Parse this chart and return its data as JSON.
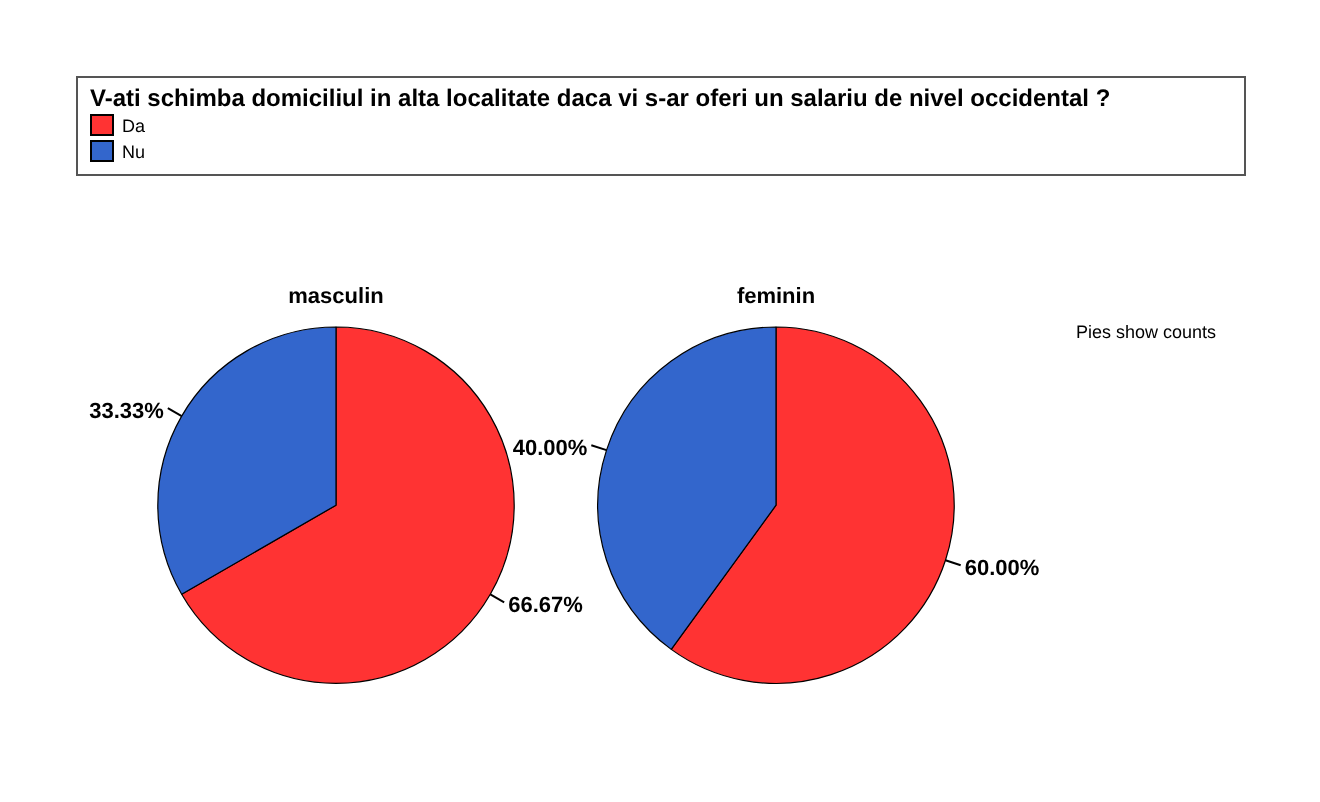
{
  "chart_data": [
    {
      "type": "pie",
      "title": "masculin",
      "legend_title": "V-ati schimba domiciliul in alta localitate daca vi s-ar oferi un salariu de nivel occidental ?",
      "legend": "top",
      "categories": [
        "Da",
        "Nu"
      ],
      "values": [
        66.67,
        33.33
      ],
      "colors": [
        "#ff3333",
        "#3366cc"
      ],
      "value_labels": [
        "66.67%",
        "33.33%"
      ]
    },
    {
      "type": "pie",
      "title": "feminin",
      "categories": [
        null,
        null
      ],
      "values": [
        60,
        40
      ],
      "colors": [
        "#ff3333",
        "#3366cc"
      ],
      "value_labels": [
        "60.00%",
        "40.00%"
      ],
      "annotations": [
        "Pies show counts"
      ]
    }
  ]
}
